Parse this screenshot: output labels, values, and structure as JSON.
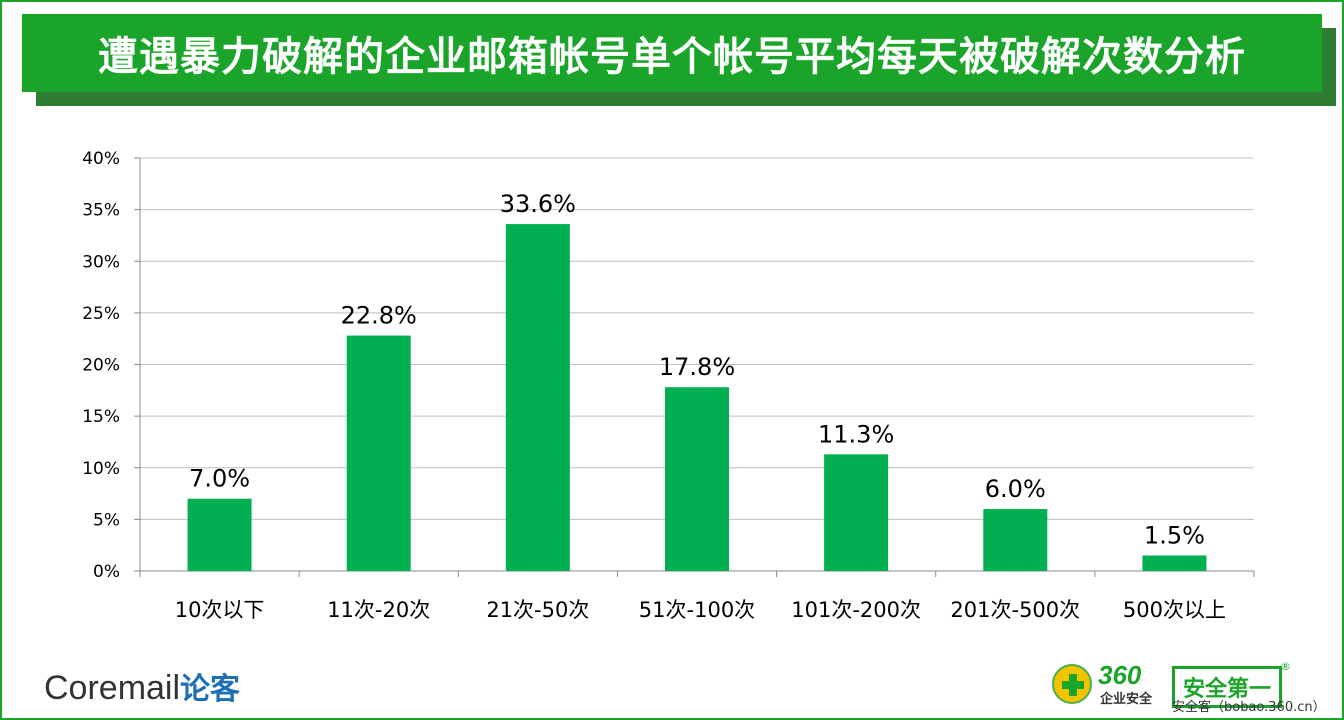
{
  "title": "遭遇暴力破解的企业邮箱帐号单个帐号平均每天被破解次数分析",
  "logos": {
    "left_text": "Coremail",
    "left_cn": "论客",
    "right_brand": "360",
    "right_sub": "企业安全",
    "right_slogan": "安全第一",
    "right_reg": "®",
    "right_url": "安全客（bobao.360.cn）"
  },
  "colors": {
    "accent": "#1aa52a",
    "bar": "#00b050",
    "grid": "#bfbfbf"
  },
  "chart_data": {
    "type": "bar",
    "categories": [
      "10次以下",
      "11次-20次",
      "21次-50次",
      "51次-100次",
      "101次-200次",
      "201次-500次",
      "500次以上"
    ],
    "values": [
      7.0,
      22.8,
      33.6,
      17.8,
      11.3,
      6.0,
      1.5
    ],
    "data_labels": [
      "7.0%",
      "22.8%",
      "33.6%",
      "17.8%",
      "11.3%",
      "6.0%",
      "1.5%"
    ],
    "yticks": [
      "0%",
      "5%",
      "10%",
      "15%",
      "20%",
      "25%",
      "30%",
      "35%",
      "40%"
    ],
    "ylim": [
      0,
      40
    ],
    "grid": true,
    "legend": "none"
  }
}
